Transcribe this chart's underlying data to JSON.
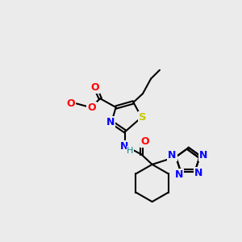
{
  "background_color": "#ebebeb",
  "bond_color": "#000000",
  "atom_colors": {
    "S": "#c8c800",
    "N": "#0000ff",
    "O": "#ff0000",
    "H": "#008b8b",
    "C": "#000000"
  },
  "figsize": [
    3.0,
    3.0
  ],
  "dpi": 100
}
